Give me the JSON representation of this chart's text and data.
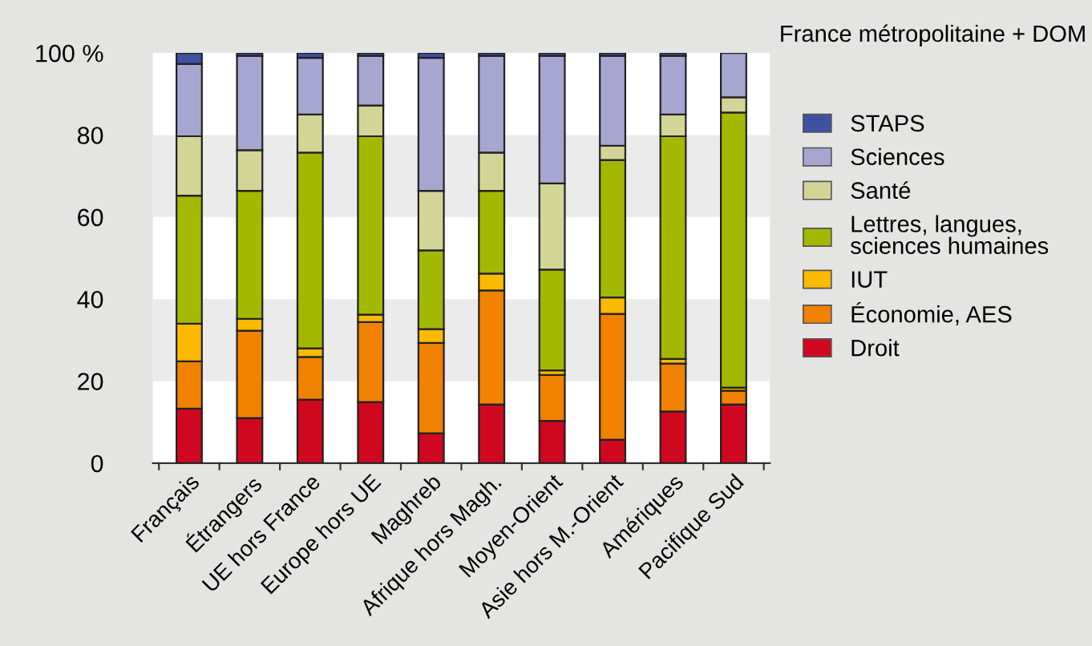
{
  "chart_data": {
    "type": "bar",
    "stacked": true,
    "categories": [
      "Français",
      "Étrangers",
      "UE hors France",
      "Europe hors UE",
      "Maghreb",
      "Afrique hors Magh.",
      "Moyen-Orient",
      "Asie hors M.-Orient",
      "Amériques",
      "Pacifique Sud"
    ],
    "series": [
      {
        "name": "Droit",
        "color": "#d0081f",
        "values": [
          13.3,
          11.0,
          15.5,
          14.9,
          7.3,
          14.3,
          10.3,
          5.7,
          12.6,
          14.3
        ]
      },
      {
        "name": "Économie, AES",
        "color": "#f08200",
        "values": [
          11.5,
          21.3,
          10.4,
          19.5,
          22.0,
          27.8,
          11.2,
          30.7,
          11.7,
          3.4
        ]
      },
      {
        "name": "IUT",
        "color": "#fbba00",
        "values": [
          9.2,
          2.9,
          2.1,
          1.8,
          3.4,
          4.1,
          1.1,
          4.0,
          1.1,
          0.7
        ]
      },
      {
        "name": "Lettres, langues,\nsciences humaines",
        "color": "#a3b800",
        "values": [
          31.2,
          31.2,
          47.7,
          43.5,
          19.2,
          20.2,
          24.6,
          33.5,
          54.3,
          67.1
        ]
      },
      {
        "name": "Santé",
        "color": "#d3d596",
        "values": [
          14.5,
          9.9,
          9.3,
          7.5,
          14.5,
          9.3,
          21.0,
          3.5,
          5.3,
          3.7
        ]
      },
      {
        "name": "Sciences",
        "color": "#a6a6d0",
        "values": [
          17.6,
          23.0,
          13.8,
          12.1,
          32.4,
          23.6,
          31.1,
          21.9,
          14.3,
          10.8
        ]
      },
      {
        "name": "STAPS",
        "color": "#3f51a3",
        "values": [
          2.7,
          0.7,
          1.2,
          0.7,
          1.2,
          0.7,
          0.7,
          0.7,
          0.7,
          null
        ]
      }
    ],
    "ylim": [
      0,
      100
    ],
    "yticks": [
      0,
      20,
      40,
      60,
      {
        "value": 80,
        "label": "80"
      },
      {
        "value": 100,
        "label": "100 %"
      }
    ],
    "bands": [
      {
        "axis": "y",
        "from": 20,
        "to": 40,
        "color": "#ebebeb"
      },
      {
        "axis": "y",
        "from": 60,
        "to": 80,
        "color": "#ebebeb"
      }
    ],
    "annotations": [
      "France métropolitaine + DOM"
    ],
    "legend": "right",
    "grid": false
  }
}
